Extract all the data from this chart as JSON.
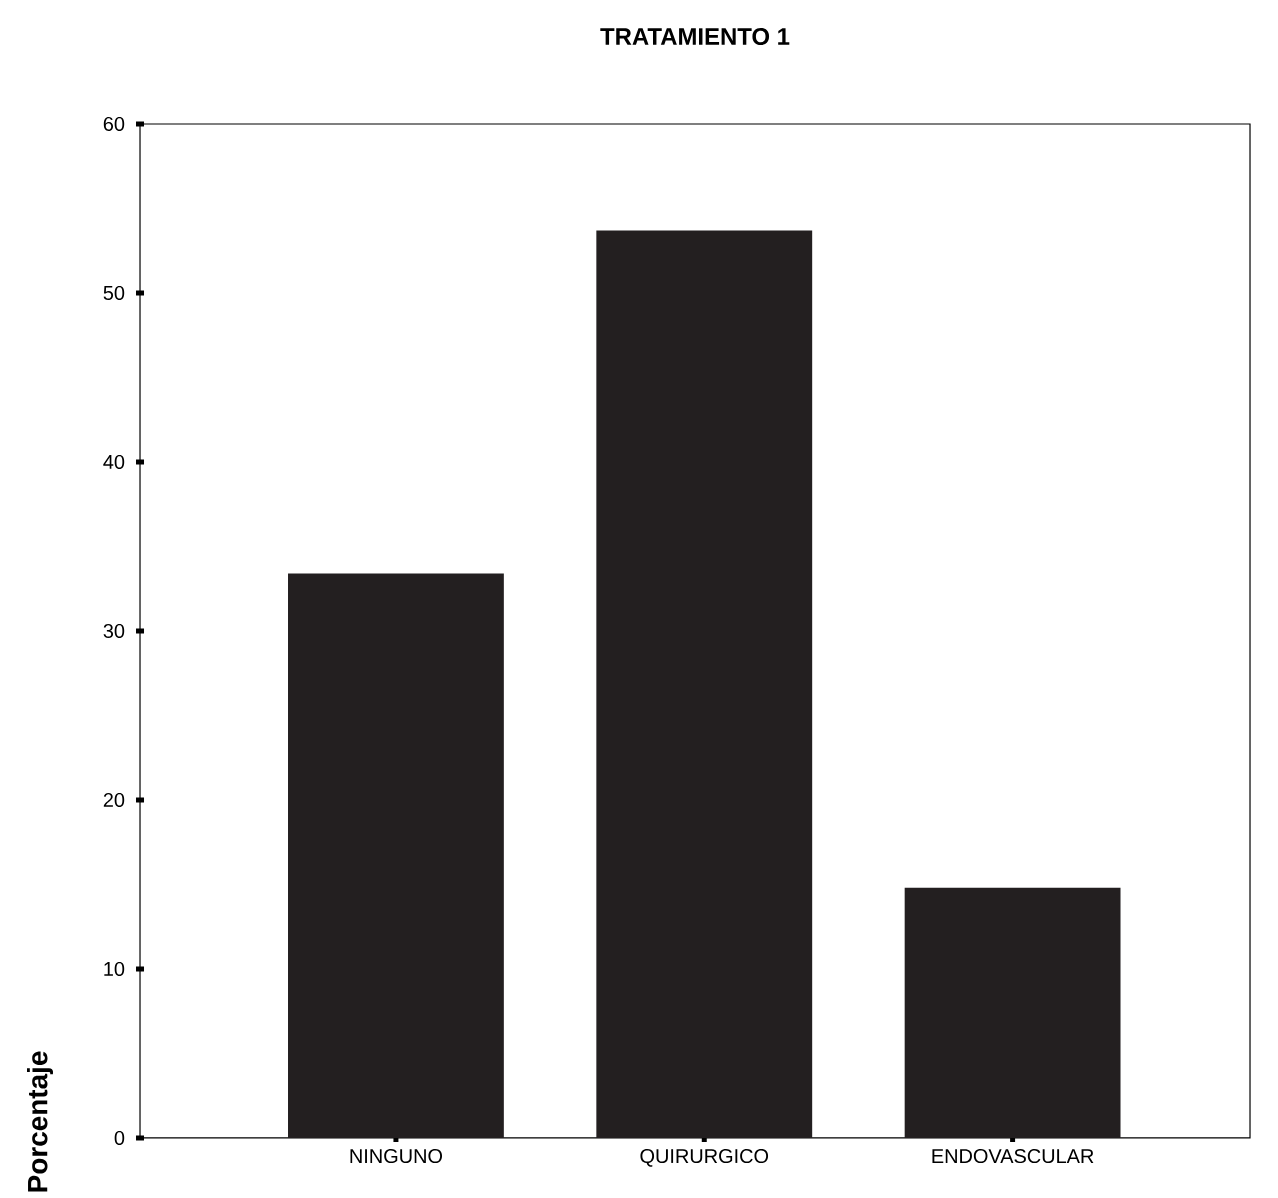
{
  "chart_data": {
    "type": "bar",
    "title": "TRATAMIENTO 1",
    "ylabel": "Porcentaje",
    "categories": [
      "NINGUNO",
      "QUIRURGICO",
      "ENDOVASCULAR"
    ],
    "values": [
      33.4,
      53.7,
      14.8
    ],
    "color": "#231f20",
    "ylim": [
      0,
      60
    ],
    "yticks": [
      0,
      10,
      20,
      30,
      40,
      50,
      60
    ],
    "grid": false
  }
}
